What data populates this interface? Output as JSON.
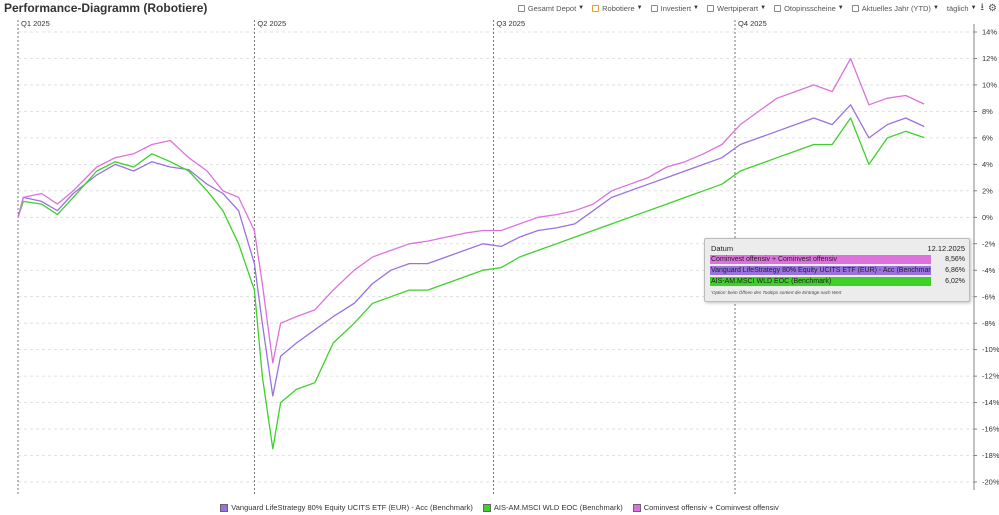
{
  "header": {
    "title": "Performance-Diagramm (Robotiere)"
  },
  "toolbar": {
    "items": [
      {
        "label": "Gesamt Depot",
        "box_color": "#888888",
        "has_dropdown": true
      },
      {
        "label": "Robotiere",
        "box_color": "#e0a020",
        "has_dropdown": true
      },
      {
        "label": "Investiert",
        "box_color": "#888888",
        "has_dropdown": true
      },
      {
        "label": "Wertpiperart",
        "box_color": "#888888",
        "has_dropdown": true
      },
      {
        "label": "Otopinsscheine",
        "box_color": "#888888",
        "has_dropdown": true
      },
      {
        "label": "Aktuelles Jahr (YTD)",
        "box_color": "#888888",
        "has_dropdown": true
      },
      {
        "label": "täglich",
        "has_dropdown": true
      }
    ],
    "icons": [
      "download-icon",
      "gear-icon"
    ]
  },
  "chart_data": {
    "type": "line",
    "title": "Performance-Diagramm (Robotiere)",
    "ylim": [
      -20,
      14
    ],
    "y_ticks": [
      14,
      12,
      10,
      8,
      6,
      4,
      2,
      0,
      -2,
      -4,
      -6,
      -8,
      -10,
      -12,
      -14,
      -16,
      -18,
      -20
    ],
    "y_tick_format": "%",
    "grid": "horizontal dashed",
    "x_range": [
      "2025-01-01",
      "2025-12-31"
    ],
    "quarters": [
      {
        "label": "Q1 2025",
        "date": "2025-01-01"
      },
      {
        "label": "Q2 2025",
        "date": "2025-04-01"
      },
      {
        "label": "Q3 2025",
        "date": "2025-07-01"
      },
      {
        "label": "Q4 2025",
        "date": "2025-10-01"
      }
    ],
    "legend_position": "bottom",
    "series": [
      {
        "name": "Vanguard LifeStrategy 80% Equity UCITS ETF (EUR) - Acc (Benchmark)",
        "color": "#9a72e0",
        "points": [
          [
            "2025-01-01",
            0
          ],
          [
            "2025-01-03",
            1.5
          ],
          [
            "2025-01-10",
            1.2
          ],
          [
            "2025-01-16",
            0.5
          ],
          [
            "2025-01-22",
            1.8
          ],
          [
            "2025-01-31",
            3.2
          ],
          [
            "2025-02-07",
            4.0
          ],
          [
            "2025-02-14",
            3.5
          ],
          [
            "2025-02-21",
            4.2
          ],
          [
            "2025-02-28",
            3.8
          ],
          [
            "2025-03-07",
            3.6
          ],
          [
            "2025-03-14",
            2.5
          ],
          [
            "2025-03-20",
            1.8
          ],
          [
            "2025-03-26",
            0.5
          ],
          [
            "2025-04-01",
            -3.5
          ],
          [
            "2025-04-04",
            -8.0
          ],
          [
            "2025-04-08",
            -13.5
          ],
          [
            "2025-04-11",
            -10.5
          ],
          [
            "2025-04-17",
            -9.5
          ],
          [
            "2025-04-24",
            -8.5
          ],
          [
            "2025-05-01",
            -7.5
          ],
          [
            "2025-05-09",
            -6.5
          ],
          [
            "2025-05-16",
            -5.0
          ],
          [
            "2025-05-23",
            -4.0
          ],
          [
            "2025-05-30",
            -3.5
          ],
          [
            "2025-06-06",
            -3.5
          ],
          [
            "2025-06-13",
            -3.0
          ],
          [
            "2025-06-20",
            -2.5
          ],
          [
            "2025-06-27",
            -2.0
          ],
          [
            "2025-07-04",
            -2.2
          ],
          [
            "2025-07-11",
            -1.5
          ],
          [
            "2025-07-18",
            -1.0
          ],
          [
            "2025-07-25",
            -0.8
          ],
          [
            "2025-08-01",
            -0.5
          ],
          [
            "2025-08-08",
            0.5
          ],
          [
            "2025-08-15",
            1.5
          ],
          [
            "2025-08-22",
            2.0
          ],
          [
            "2025-08-29",
            2.5
          ],
          [
            "2025-09-05",
            3.0
          ],
          [
            "2025-09-12",
            3.5
          ],
          [
            "2025-09-19",
            4.0
          ],
          [
            "2025-09-26",
            4.5
          ],
          [
            "2025-10-03",
            5.5
          ],
          [
            "2025-10-10",
            6.0
          ],
          [
            "2025-10-17",
            6.5
          ],
          [
            "2025-10-24",
            7.0
          ],
          [
            "2025-10-31",
            7.5
          ],
          [
            "2025-11-07",
            7.0
          ],
          [
            "2025-11-14",
            8.5
          ],
          [
            "2025-11-21",
            6.0
          ],
          [
            "2025-11-28",
            7.0
          ],
          [
            "2025-12-05",
            7.5
          ],
          [
            "2025-12-12",
            6.86
          ]
        ]
      },
      {
        "name": "AIS-AM.MSCI WLD EOC (Benchmark)",
        "color": "#3ed12a",
        "points": [
          [
            "2025-01-01",
            0
          ],
          [
            "2025-01-03",
            1.2
          ],
          [
            "2025-01-10",
            1.0
          ],
          [
            "2025-01-16",
            0.2
          ],
          [
            "2025-01-22",
            1.5
          ],
          [
            "2025-01-31",
            3.5
          ],
          [
            "2025-02-07",
            4.2
          ],
          [
            "2025-02-14",
            3.8
          ],
          [
            "2025-02-21",
            4.8
          ],
          [
            "2025-02-28",
            4.2
          ],
          [
            "2025-03-07",
            3.5
          ],
          [
            "2025-03-14",
            2.0
          ],
          [
            "2025-03-20",
            0.5
          ],
          [
            "2025-03-26",
            -2.0
          ],
          [
            "2025-04-01",
            -5.5
          ],
          [
            "2025-04-04",
            -12.0
          ],
          [
            "2025-04-08",
            -17.5
          ],
          [
            "2025-04-11",
            -14.0
          ],
          [
            "2025-04-17",
            -13.0
          ],
          [
            "2025-04-24",
            -12.5
          ],
          [
            "2025-05-01",
            -9.5
          ],
          [
            "2025-05-09",
            -8.0
          ],
          [
            "2025-05-16",
            -6.5
          ],
          [
            "2025-05-23",
            -6.0
          ],
          [
            "2025-05-30",
            -5.5
          ],
          [
            "2025-06-06",
            -5.5
          ],
          [
            "2025-06-13",
            -5.0
          ],
          [
            "2025-06-20",
            -4.5
          ],
          [
            "2025-06-27",
            -4.0
          ],
          [
            "2025-07-04",
            -3.8
          ],
          [
            "2025-07-11",
            -3.0
          ],
          [
            "2025-07-18",
            -2.5
          ],
          [
            "2025-07-25",
            -2.0
          ],
          [
            "2025-08-01",
            -1.5
          ],
          [
            "2025-08-08",
            -1.0
          ],
          [
            "2025-08-15",
            -0.5
          ],
          [
            "2025-08-22",
            0.0
          ],
          [
            "2025-08-29",
            0.5
          ],
          [
            "2025-09-05",
            1.0
          ],
          [
            "2025-09-12",
            1.5
          ],
          [
            "2025-09-19",
            2.0
          ],
          [
            "2025-09-26",
            2.5
          ],
          [
            "2025-10-03",
            3.5
          ],
          [
            "2025-10-10",
            4.0
          ],
          [
            "2025-10-17",
            4.5
          ],
          [
            "2025-10-24",
            5.0
          ],
          [
            "2025-10-31",
            5.5
          ],
          [
            "2025-11-07",
            5.5
          ],
          [
            "2025-11-14",
            7.5
          ],
          [
            "2025-11-21",
            4.0
          ],
          [
            "2025-11-28",
            6.0
          ],
          [
            "2025-12-05",
            6.5
          ],
          [
            "2025-12-12",
            6.02
          ]
        ]
      },
      {
        "name": "Cominvest offensiv + Cominvest offensiv",
        "color": "#dd72dd",
        "points": [
          [
            "2025-01-01",
            0
          ],
          [
            "2025-01-03",
            1.5
          ],
          [
            "2025-01-10",
            1.8
          ],
          [
            "2025-01-16",
            1.0
          ],
          [
            "2025-01-22",
            2.0
          ],
          [
            "2025-01-31",
            3.8
          ],
          [
            "2025-02-07",
            4.5
          ],
          [
            "2025-02-14",
            4.8
          ],
          [
            "2025-02-21",
            5.5
          ],
          [
            "2025-02-28",
            5.8
          ],
          [
            "2025-03-07",
            4.5
          ],
          [
            "2025-03-14",
            3.5
          ],
          [
            "2025-03-20",
            2.0
          ],
          [
            "2025-03-26",
            1.5
          ],
          [
            "2025-04-01",
            -1.0
          ],
          [
            "2025-04-04",
            -5.0
          ],
          [
            "2025-04-08",
            -11.0
          ],
          [
            "2025-04-11",
            -8.0
          ],
          [
            "2025-04-17",
            -7.5
          ],
          [
            "2025-04-24",
            -7.0
          ],
          [
            "2025-05-01",
            -5.5
          ],
          [
            "2025-05-09",
            -4.0
          ],
          [
            "2025-05-16",
            -3.0
          ],
          [
            "2025-05-23",
            -2.5
          ],
          [
            "2025-05-30",
            -2.0
          ],
          [
            "2025-06-06",
            -1.8
          ],
          [
            "2025-06-13",
            -1.5
          ],
          [
            "2025-06-20",
            -1.2
          ],
          [
            "2025-06-27",
            -1.0
          ],
          [
            "2025-07-04",
            -1.0
          ],
          [
            "2025-07-11",
            -0.5
          ],
          [
            "2025-07-18",
            0.0
          ],
          [
            "2025-07-25",
            0.2
          ],
          [
            "2025-08-01",
            0.5
          ],
          [
            "2025-08-08",
            1.0
          ],
          [
            "2025-08-15",
            2.0
          ],
          [
            "2025-08-22",
            2.5
          ],
          [
            "2025-08-29",
            3.0
          ],
          [
            "2025-09-05",
            3.8
          ],
          [
            "2025-09-12",
            4.2
          ],
          [
            "2025-09-19",
            4.8
          ],
          [
            "2025-09-26",
            5.5
          ],
          [
            "2025-10-03",
            7.0
          ],
          [
            "2025-10-10",
            8.0
          ],
          [
            "2025-10-17",
            9.0
          ],
          [
            "2025-10-24",
            9.5
          ],
          [
            "2025-10-31",
            10.0
          ],
          [
            "2025-11-07",
            9.5
          ],
          [
            "2025-11-14",
            12.0
          ],
          [
            "2025-11-21",
            8.5
          ],
          [
            "2025-11-28",
            9.0
          ],
          [
            "2025-12-05",
            9.2
          ],
          [
            "2025-12-12",
            8.56
          ]
        ]
      }
    ]
  },
  "legend": {
    "items": [
      {
        "label": "Vanguard LifeStrategy 80% Equity UCITS ETF (EUR) - Acc (Benchmark)",
        "color": "#9a72e0"
      },
      {
        "label": "AIS-AM.MSCI WLD EOC (Benchmark)",
        "color": "#3ed12a"
      },
      {
        "label": "Cominvest offensiv + Cominvest offensiv",
        "color": "#dd72dd"
      }
    ]
  },
  "tooltip": {
    "date_label": "Datum",
    "date_value": "12.12.2025",
    "rows": [
      {
        "name": "Cominvest offensiv + Cominvest offensiv",
        "value": "8,56%",
        "color": "#dd72dd"
      },
      {
        "name": "Vanguard LifeStrategy 80% Equity UCITS ETF (EUR) - Acc (Benchmark)",
        "value": "6,86%",
        "color": "#9a72e0"
      },
      {
        "name": "AIS-AM.MSCI WLD EOC (Benchmark)",
        "value": "6,02%",
        "color": "#3ed12a"
      }
    ],
    "note": "'Option' beim Öffnen des Tooltips sortiert die Einträge nach Wert"
  }
}
